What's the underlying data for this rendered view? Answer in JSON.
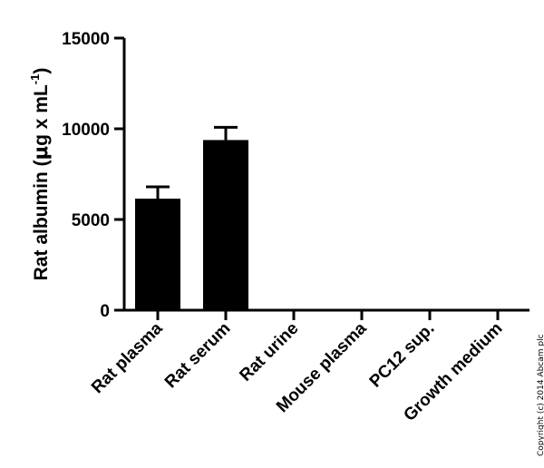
{
  "chart_data": {
    "type": "bar",
    "categories": [
      "Rat plasma",
      "Rat serum",
      "Rat urine",
      "Mouse plasma",
      "PC12 sup.",
      "Growth medium"
    ],
    "values": [
      6150,
      9380,
      0,
      0,
      0,
      0
    ],
    "error_upper": [
      6800,
      10080,
      null,
      null,
      null,
      null
    ],
    "xlabel": "",
    "ylabel_prefix": "Rat albumin (",
    "ylabel_mu": "μ",
    "ylabel_middle": "g x mL",
    "ylabel_exponent": "-1",
    "ylabel_suffix": ")",
    "ylim": [
      0,
      15000
    ],
    "yticks": [
      0,
      5000,
      10000,
      15000
    ],
    "ytick_labels": [
      "0",
      "5000",
      "10000",
      "15000"
    ],
    "grid": false,
    "bar_color": "#000000"
  },
  "copyright": "Copyright (c) 2014 Abcam plc"
}
